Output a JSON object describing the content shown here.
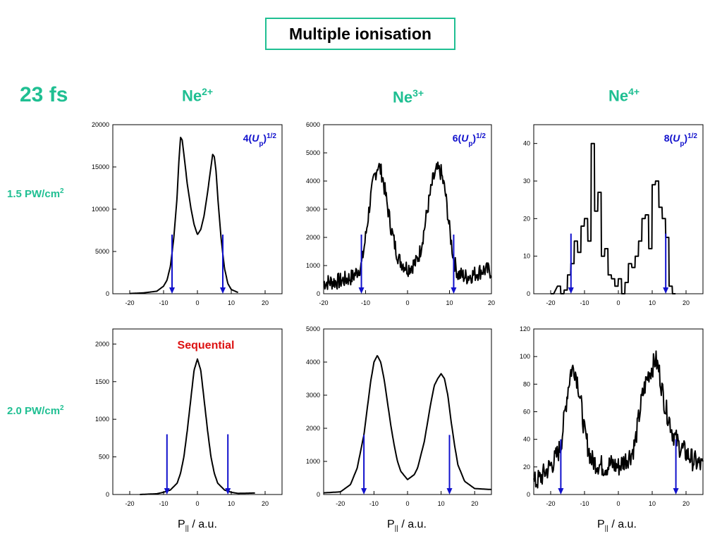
{
  "title": "Multiple ionisation",
  "duration": "23 fs",
  "ions": [
    {
      "base": "Ne",
      "charge": "2+"
    },
    {
      "base": "Ne",
      "charge": "3+"
    },
    {
      "base": "Ne",
      "charge": "4+"
    }
  ],
  "intensities": [
    {
      "value": "1.5 PW/cm",
      "exp": "2"
    },
    {
      "value": "2.0 PW/cm",
      "exp": "2"
    }
  ],
  "xlabel": {
    "main": "P",
    "sub": "||",
    "unit": " / a.u."
  },
  "colors": {
    "accent": "#1fbf92",
    "arrow": "#1010cc",
    "label_blue": "#1010cc",
    "sequential": "#dd1111",
    "trace": "#000000"
  },
  "chart_data": [
    {
      "type": "line",
      "row": 1,
      "col": 1,
      "xlim": [
        -25,
        25
      ],
      "ylim": [
        0,
        20000
      ],
      "xticks": [
        -20,
        -10,
        0,
        10,
        20
      ],
      "yticks": [
        0,
        5000,
        10000,
        15000,
        20000
      ],
      "annotation": {
        "prefix": "4(",
        "var": "U",
        "sub": "p",
        "suffix": ")",
        "sup": "1/2"
      },
      "arrows": [
        -7.5,
        7.5
      ],
      "arrow_top": 7000,
      "series": [
        {
          "x": [
            -20,
            -16,
            -12,
            -10,
            -9,
            -8,
            -7,
            -6,
            -5.5,
            -5,
            -4.5,
            -4,
            -3,
            -2,
            -1,
            0,
            1,
            2,
            3,
            4,
            4.5,
            5,
            5.5,
            6,
            7,
            8,
            9,
            10,
            12
          ],
          "y": [
            30,
            100,
            300,
            900,
            1600,
            3200,
            6500,
            11500,
            15500,
            18500,
            18200,
            16500,
            13000,
            10300,
            8200,
            7000,
            7600,
            9300,
            12000,
            15000,
            16500,
            16200,
            14500,
            11500,
            6500,
            3000,
            1200,
            500,
            150
          ]
        }
      ],
      "noise": 0
    },
    {
      "type": "line",
      "row": 1,
      "col": 2,
      "xlim": [
        -20,
        20
      ],
      "ylim": [
        0,
        6000
      ],
      "xticks": [
        -20,
        -10,
        0,
        10,
        20
      ],
      "yticks": [
        0,
        1000,
        2000,
        3000,
        4000,
        5000,
        6000
      ],
      "annotation": {
        "prefix": "6(",
        "var": "U",
        "sub": "p",
        "suffix": ")",
        "sup": "1/2"
      },
      "arrows": [
        -11,
        11
      ],
      "arrow_top": 2100,
      "series": [
        {
          "x": [
            -20,
            -16,
            -13,
            -11,
            -10,
            -9,
            -8,
            -7,
            -6,
            -5,
            -4,
            -3,
            -2,
            0,
            2,
            3,
            4,
            5,
            6,
            7,
            8,
            9,
            10,
            11,
            12,
            14,
            16,
            18,
            20
          ],
          "y": [
            400,
            450,
            600,
            1000,
            2000,
            3200,
            4100,
            4600,
            4200,
            3300,
            2400,
            1700,
            1200,
            900,
            1100,
            1500,
            2300,
            3200,
            4000,
            4400,
            4300,
            3600,
            2300,
            1200,
            700,
            600,
            700,
            850,
            800
          ]
        }
      ],
      "noise": 300
    },
    {
      "type": "line",
      "row": 1,
      "col": 3,
      "xlim": [
        -25,
        25
      ],
      "ylim": [
        0,
        45
      ],
      "xticks": [
        -20,
        -10,
        0,
        10,
        20
      ],
      "yticks": [
        0,
        10,
        20,
        30,
        40
      ],
      "annotation": {
        "prefix": "8(",
        "var": "U",
        "sub": "p",
        "suffix": ")",
        "sup": "1/2"
      },
      "arrows": [
        -14,
        14
      ],
      "arrow_top": 16,
      "series": [
        {
          "x": [
            -20,
            -18,
            -17,
            -16,
            -15,
            -14,
            -13,
            -12,
            -11,
            -10,
            -9,
            -8,
            -7,
            -6,
            -5,
            -4,
            -3,
            -2,
            -1,
            0,
            1,
            2,
            3,
            4,
            5,
            6,
            7,
            8,
            9,
            10,
            11,
            12,
            13,
            14,
            15,
            16
          ],
          "y": [
            0,
            2,
            0,
            1,
            5,
            8,
            14,
            11,
            18,
            20,
            14,
            40,
            22,
            27,
            10,
            12,
            5,
            4,
            2,
            4,
            0,
            3,
            8,
            7,
            10,
            14,
            20,
            21,
            12,
            29,
            30,
            23,
            20,
            15,
            2,
            0
          ]
        }
      ],
      "noise": 0,
      "step": true
    },
    {
      "type": "line",
      "row": 2,
      "col": 1,
      "xlim": [
        -25,
        25
      ],
      "ylim": [
        0,
        2200
      ],
      "xticks": [
        -20,
        -10,
        0,
        10,
        20
      ],
      "yticks": [
        0,
        500,
        1000,
        1500,
        2000
      ],
      "annotation": {
        "text": "Sequential"
      },
      "arrows": [
        -9,
        9
      ],
      "arrow_top": 800,
      "series": [
        {
          "x": [
            -17,
            -12,
            -10,
            -8,
            -6,
            -5,
            -4,
            -3,
            -2,
            -1,
            0,
            1,
            2,
            3,
            4,
            5,
            6,
            8,
            10,
            12,
            17
          ],
          "y": [
            0,
            10,
            30,
            60,
            150,
            280,
            500,
            850,
            1250,
            1650,
            1800,
            1650,
            1250,
            850,
            500,
            280,
            150,
            60,
            30,
            15,
            20
          ]
        }
      ],
      "noise": 0
    },
    {
      "type": "line",
      "row": 2,
      "col": 2,
      "xlim": [
        -25,
        25
      ],
      "ylim": [
        0,
        5000
      ],
      "xticks": [
        -20,
        -10,
        0,
        10,
        20
      ],
      "yticks": [
        0,
        1000,
        2000,
        3000,
        4000,
        5000
      ],
      "annotation": null,
      "arrows": [
        -13,
        12.5
      ],
      "arrow_top": 1800,
      "series": [
        {
          "x": [
            -25,
            -20,
            -17,
            -15,
            -13,
            -12,
            -11,
            -10,
            -9,
            -8,
            -7,
            -6,
            -5,
            -4,
            -3,
            -2,
            0,
            2,
            3,
            4,
            5,
            6,
            7,
            8,
            9,
            10,
            11,
            12,
            13,
            14,
            15,
            17,
            20,
            25
          ],
          "y": [
            50,
            80,
            300,
            800,
            1800,
            2600,
            3400,
            4000,
            4200,
            4000,
            3500,
            2800,
            2100,
            1500,
            1000,
            700,
            450,
            600,
            800,
            1200,
            1600,
            2200,
            2800,
            3300,
            3500,
            3650,
            3500,
            3000,
            2200,
            1500,
            900,
            400,
            180,
            150
          ]
        }
      ],
      "noise": 0
    },
    {
      "type": "line",
      "row": 2,
      "col": 3,
      "xlim": [
        -25,
        25
      ],
      "ylim": [
        0,
        120
      ],
      "xticks": [
        -20,
        -10,
        0,
        10,
        20
      ],
      "yticks": [
        0,
        20,
        40,
        60,
        80,
        100,
        120
      ],
      "annotation": null,
      "arrows": [
        -17,
        17
      ],
      "arrow_top": 40,
      "series": [
        {
          "x": [
            -25,
            -23,
            -21,
            -19,
            -17,
            -16,
            -15,
            -14,
            -13,
            -12,
            -11,
            -10,
            -9,
            -8,
            -6,
            -4,
            -2,
            0,
            2,
            4,
            5,
            6,
            7,
            8,
            9,
            10,
            11,
            12,
            13,
            14,
            15,
            16,
            18,
            20,
            22,
            25
          ],
          "y": [
            8,
            12,
            18,
            24,
            35,
            55,
            75,
            90,
            92,
            82,
            65,
            45,
            35,
            25,
            22,
            20,
            22,
            20,
            25,
            30,
            38,
            55,
            70,
            80,
            88,
            92,
            98,
            90,
            75,
            62,
            55,
            45,
            35,
            30,
            25,
            20
          ]
        }
      ],
      "noise": 8
    }
  ]
}
